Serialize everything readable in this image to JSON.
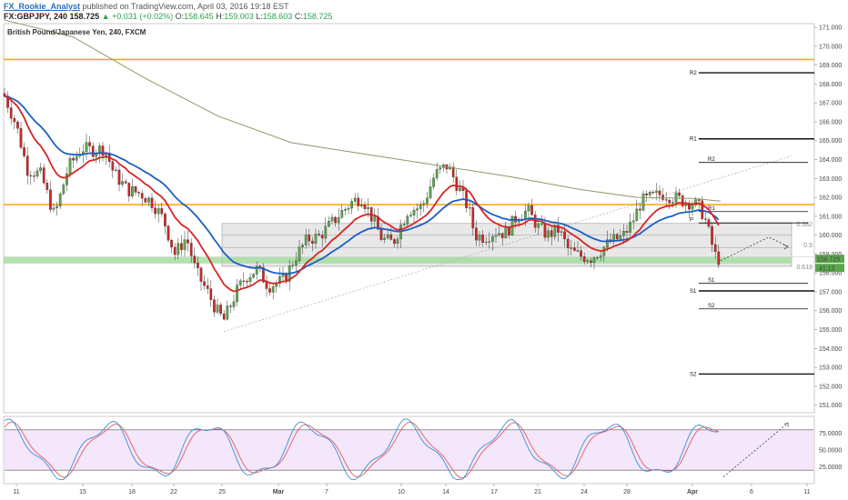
{
  "header": {
    "author": "FX_Rookie_Analyst",
    "published_text": "published on TradingView.com, April 03, 2016 19:18 EST",
    "symbol": "FX:GBPJPY, 240",
    "last": "158.725",
    "change": "+0.031 (+0.02%)",
    "o_label": "O:",
    "o_value": "158.645",
    "h_label": "H:",
    "h_value": "159.003",
    "l_label": "L:",
    "l_value": "158.603",
    "c_label": "C:",
    "c_value": "158.725"
  },
  "chart_data": {
    "type": "candlestick",
    "title": "British Pound/Japanese Yen, 240, FXCM",
    "x_ticks": [
      "11",
      "15",
      "18",
      "22",
      "25",
      "Mar",
      "7",
      "10",
      "14",
      "17",
      "21",
      "24",
      "28",
      "Apr",
      "6",
      "11"
    ],
    "ylim": [
      150.6,
      171.2
    ],
    "y_ticks": [
      "171.000",
      "170.000",
      "169.000",
      "168.000",
      "167.000",
      "166.000",
      "165.000",
      "164.000",
      "163.000",
      "162.000",
      "161.000",
      "160.000",
      "159.000",
      "158.000",
      "157.000",
      "156.000",
      "155.000",
      "154.000",
      "153.000",
      "152.000",
      "151.000"
    ],
    "price_tags": {
      "last": "158.725",
      "countdown": "41:13"
    },
    "colors": {
      "up": "#5aa64c",
      "down": "#cf2525",
      "ema_fast": "#d62424",
      "ema_slow": "#1c5fc4",
      "sma_long": "#8a9a64",
      "resistance": "#f7a823",
      "support_zone": "#9fdc9a",
      "range_box": "#d6d6d6",
      "stoch_k": "#3c8fd8",
      "stoch_d": "#e55b5b",
      "stoch_bg": "#f4e6fb"
    },
    "horizontal_lines": [
      169.3,
      161.62
    ],
    "range_box": {
      "low": 158.35,
      "high": 160.62
    },
    "support_zone": {
      "low": 158.5,
      "high": 158.85
    },
    "fib_levels": [
      {
        "label": "0.382",
        "value": 160.58
      },
      {
        "label": "0.5",
        "value": 159.48
      },
      {
        "label": "0.618",
        "value": 158.32
      }
    ],
    "pivots_weekly": [
      {
        "label": "R2",
        "value": 168.6
      },
      {
        "label": "R1",
        "value": 165.1
      },
      {
        "label": "S1",
        "value": 157.05
      },
      {
        "label": "S2",
        "value": 152.65
      }
    ],
    "pivots_daily": [
      {
        "label": "R2",
        "value": 163.85
      },
      {
        "label": "R1",
        "value": 161.25
      },
      {
        "label": "P",
        "value": 160.65
      },
      {
        "label": "S1",
        "value": 157.45
      },
      {
        "label": "S2",
        "value": 156.1
      }
    ],
    "stochastic": {
      "y_ticks": [
        "75.0000",
        "50.0000",
        "25.0000"
      ],
      "ylim": [
        0,
        100
      ],
      "bands": [
        20,
        80
      ]
    }
  }
}
